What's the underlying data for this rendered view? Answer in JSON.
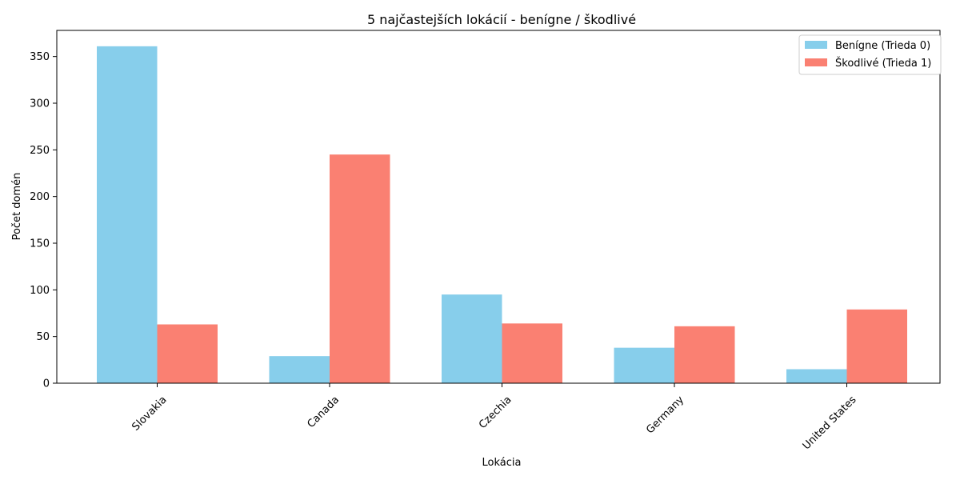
{
  "chart_data": {
    "type": "bar",
    "title": "5 najčastejších lokácií - benígne / škodlivé",
    "xlabel": "Lokácia",
    "ylabel": "Počet domén",
    "categories": [
      "Slovakia",
      "Canada",
      "Czechia",
      "Germany",
      "United States"
    ],
    "series": [
      {
        "name": "Benígne (Trieda 0)",
        "values": [
          361,
          29,
          95,
          38,
          15
        ],
        "color": "#87CEEB"
      },
      {
        "name": "Škodlivé (Trieda 1)",
        "values": [
          63,
          245,
          64,
          61,
          79
        ],
        "color": "#FA8072"
      }
    ],
    "ylim": [
      0,
      378
    ],
    "yticks": [
      0,
      50,
      100,
      150,
      200,
      250,
      300,
      350
    ],
    "grid": false,
    "legend": "top-right",
    "xtick_rotation": 45
  }
}
